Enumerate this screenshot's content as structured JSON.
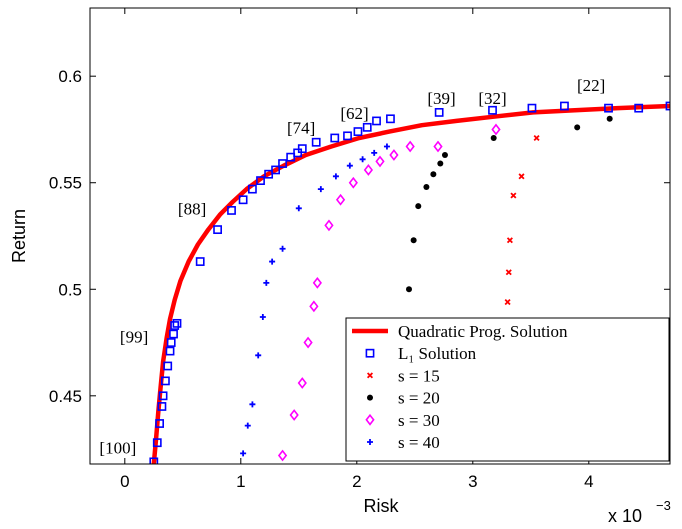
{
  "chart_data": {
    "type": "scatter",
    "title": "",
    "xlabel": "Risk",
    "ylabel": "Return",
    "x_multiplier": "x 10",
    "x_multiplier_exp": "−3",
    "xlim": [
      -0.3,
      4.7
    ],
    "ylim": [
      0.418,
      0.632
    ],
    "xticks": [
      0,
      1,
      2,
      3,
      4
    ],
    "yticks": [
      0.45,
      0.5,
      0.55,
      0.6
    ],
    "ytick_labels": [
      "0.45",
      "0.5",
      "0.55",
      "0.6"
    ],
    "grid": false,
    "legend_position": "lower-right",
    "colors": {
      "qp": "#ff0000",
      "l1": "#0000ff",
      "s15": "#ff0000",
      "s20": "#000000",
      "s30": "#ff00ff",
      "s40": "#0000ff"
    },
    "annotations": [
      {
        "text": "[100]",
        "x": -0.06,
        "y": 0.423
      },
      {
        "text": "[99]",
        "x": 0.08,
        "y": 0.475
      },
      {
        "text": "[88]",
        "x": 0.58,
        "y": 0.535
      },
      {
        "text": "[74]",
        "x": 1.52,
        "y": 0.573
      },
      {
        "text": "[62]",
        "x": 1.98,
        "y": 0.58
      },
      {
        "text": "[39]",
        "x": 2.73,
        "y": 0.587
      },
      {
        "text": "[32]",
        "x": 3.17,
        "y": 0.587
      },
      {
        "text": "[22]",
        "x": 4.02,
        "y": 0.593
      }
    ],
    "series": [
      {
        "name": "Quadratic Prog. Solution",
        "marker": "line",
        "x": [
          0.25,
          0.27,
          0.29,
          0.31,
          0.33,
          0.36,
          0.39,
          0.43,
          0.48,
          0.55,
          0.63,
          0.72,
          0.82,
          0.93,
          1.05,
          1.2,
          1.37,
          1.56,
          1.78,
          2.02,
          2.28,
          2.56,
          2.86,
          3.18,
          3.52,
          3.88,
          4.25,
          4.7
        ],
        "y": [
          0.418,
          0.43,
          0.443,
          0.455,
          0.466,
          0.477,
          0.486,
          0.495,
          0.504,
          0.513,
          0.521,
          0.528,
          0.535,
          0.541,
          0.547,
          0.553,
          0.558,
          0.563,
          0.567,
          0.571,
          0.574,
          0.577,
          0.579,
          0.581,
          0.583,
          0.584,
          0.585,
          0.586
        ]
      },
      {
        "name": "L₁ Solution",
        "marker": "square",
        "x": [
          0.25,
          0.28,
          0.3,
          0.32,
          0.33,
          0.35,
          0.37,
          0.39,
          0.4,
          0.42,
          0.43,
          0.45,
          0.65,
          0.8,
          0.92,
          1.02,
          1.1,
          1.17,
          1.24,
          1.3,
          1.36,
          1.43,
          1.49,
          1.53,
          1.65,
          1.81,
          1.92,
          2.01,
          2.09,
          2.17,
          2.29,
          2.71,
          3.17,
          3.51,
          3.79,
          4.17,
          4.43,
          4.7
        ],
        "y": [
          0.419,
          0.428,
          0.437,
          0.445,
          0.45,
          0.457,
          0.464,
          0.471,
          0.475,
          0.479,
          0.483,
          0.484,
          0.513,
          0.528,
          0.537,
          0.542,
          0.547,
          0.551,
          0.554,
          0.556,
          0.559,
          0.562,
          0.564,
          0.566,
          0.569,
          0.571,
          0.572,
          0.574,
          0.576,
          0.579,
          0.58,
          0.583,
          0.584,
          0.585,
          0.586,
          0.585,
          0.585,
          0.586
        ]
      },
      {
        "name": "s = 15",
        "marker": "x",
        "x": [
          3.3,
          3.31,
          3.32,
          3.35,
          3.42,
          3.55
        ],
        "y": [
          0.494,
          0.508,
          0.523,
          0.544,
          0.553,
          0.571
        ]
      },
      {
        "name": "s = 20",
        "marker": "dot",
        "x": [
          2.45,
          2.49,
          2.53,
          2.6,
          2.66,
          2.72,
          2.76,
          3.18,
          3.9,
          4.18
        ],
        "y": [
          0.5,
          0.523,
          0.539,
          0.548,
          0.554,
          0.559,
          0.563,
          0.571,
          0.576,
          0.58
        ]
      },
      {
        "name": "s = 30",
        "marker": "diamond",
        "x": [
          1.36,
          1.46,
          1.53,
          1.58,
          1.63,
          1.66,
          1.76,
          1.86,
          1.97,
          2.1,
          2.2,
          2.32,
          2.46,
          2.7,
          3.2
        ],
        "y": [
          0.422,
          0.441,
          0.456,
          0.475,
          0.492,
          0.503,
          0.53,
          0.542,
          0.55,
          0.556,
          0.56,
          0.563,
          0.567,
          0.567,
          0.575
        ]
      },
      {
        "name": "s = 40",
        "marker": "plus",
        "x": [
          1.02,
          1.06,
          1.1,
          1.15,
          1.19,
          1.22,
          1.27,
          1.36,
          1.5,
          1.69,
          1.82,
          1.94,
          2.05,
          2.15,
          2.26
        ],
        "y": [
          0.423,
          0.436,
          0.446,
          0.469,
          0.487,
          0.503,
          0.513,
          0.519,
          0.538,
          0.547,
          0.553,
          0.558,
          0.561,
          0.564,
          0.567
        ]
      }
    ]
  }
}
